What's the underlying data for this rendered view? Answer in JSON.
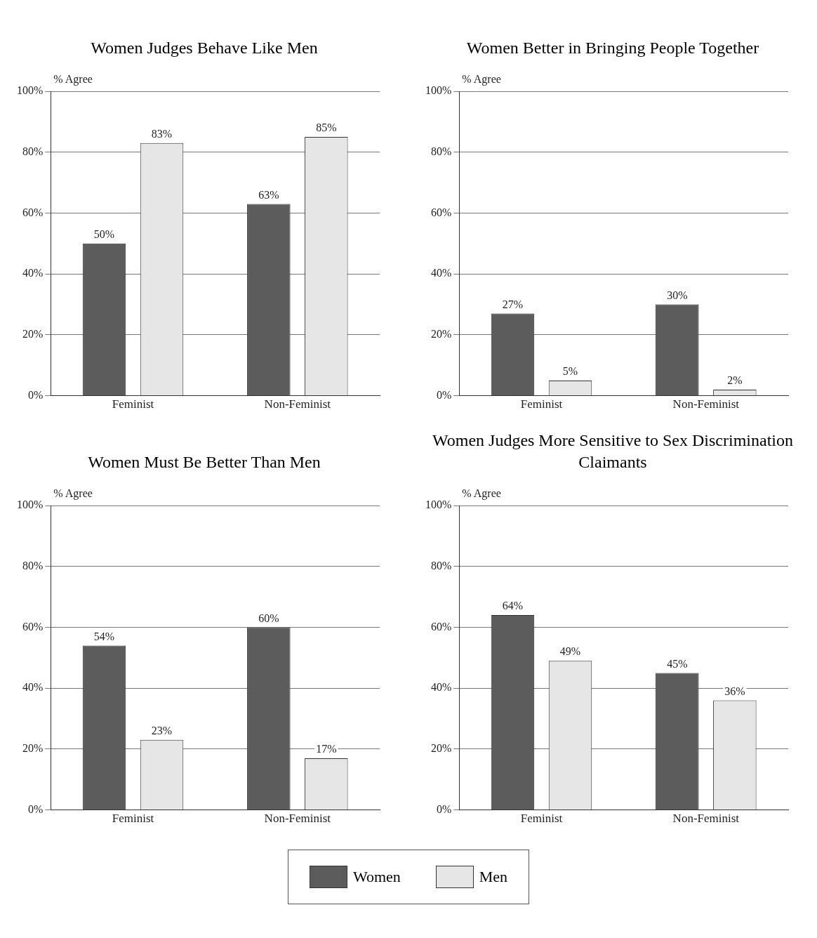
{
  "chart_data": [
    {
      "type": "bar",
      "title": "Women Judges Behave Like Men",
      "ylabel": "% Agree",
      "categories": [
        "Feminist",
        "Non-Feminist"
      ],
      "series": [
        {
          "name": "Women",
          "color": "#5c5c5c",
          "values": [
            50,
            63
          ],
          "value_labels": [
            "50%",
            "63%"
          ]
        },
        {
          "name": "Men",
          "color": "#e6e6e6",
          "values": [
            83,
            85
          ],
          "value_labels": [
            "83%",
            "85%"
          ]
        }
      ],
      "ylim": [
        0,
        100
      ],
      "yticks": [
        {
          "value": 0,
          "label": "0%"
        },
        {
          "value": 20,
          "label": "20%"
        },
        {
          "value": 40,
          "label": "40%"
        },
        {
          "value": 60,
          "label": "60%"
        },
        {
          "value": 80,
          "label": "80%"
        },
        {
          "value": 100,
          "label": "100%"
        }
      ],
      "grid": "y",
      "legend": "bottom"
    },
    {
      "type": "bar",
      "title": "Women Better in Bringing People Together",
      "ylabel": "% Agree",
      "categories": [
        "Feminist",
        "Non-Feminist"
      ],
      "series": [
        {
          "color": "#5c5c5c",
          "values": [
            27,
            30
          ],
          "value_labels": [
            "27%",
            "30%"
          ]
        },
        {
          "color": "#e6e6e6",
          "values": [
            5,
            2
          ],
          "value_labels": [
            "5%",
            "2%"
          ]
        }
      ],
      "ylim": [
        0,
        100
      ],
      "yticks": [
        {
          "value": 0,
          "label": "0%"
        },
        {
          "value": 20,
          "label": "20%"
        },
        {
          "value": 40,
          "label": "40%"
        },
        {
          "value": 60,
          "label": "60%"
        },
        {
          "value": 80,
          "label": "80%"
        },
        {
          "value": 100,
          "label": "100%"
        }
      ],
      "grid": "y"
    },
    {
      "type": "bar",
      "title": "Women Must Be Better Than Men",
      "ylabel": "% Agree",
      "categories": [
        "Feminist",
        "Non-Feminist"
      ],
      "series": [
        {
          "color": "#5c5c5c",
          "values": [
            54,
            60
          ],
          "value_labels": [
            "54%",
            "60%"
          ]
        },
        {
          "color": "#e6e6e6",
          "values": [
            23,
            17
          ],
          "value_labels": [
            "23%",
            "17%"
          ]
        }
      ],
      "ylim": [
        0,
        100
      ],
      "yticks": [
        {
          "value": 0,
          "label": "0%"
        },
        {
          "value": 20,
          "label": "20%"
        },
        {
          "value": 40,
          "label": "40%"
        },
        {
          "value": 60,
          "label": "60%"
        },
        {
          "value": 80,
          "label": "80%"
        },
        {
          "value": 100,
          "label": "100%"
        }
      ],
      "grid": "y"
    },
    {
      "type": "bar",
      "title": "Women Judges More Sensitive to Sex Discrimination Claimants",
      "ylabel": "% Agree",
      "categories": [
        "Feminist",
        "Non-Feminist"
      ],
      "series": [
        {
          "color": "#5c5c5c",
          "values": [
            64,
            45
          ],
          "value_labels": [
            "64%",
            "45%"
          ]
        },
        {
          "color": "#e6e6e6",
          "values": [
            49,
            36
          ],
          "value_labels": [
            "49%",
            "36%"
          ]
        }
      ],
      "ylim": [
        0,
        100
      ],
      "yticks": [
        {
          "value": 0,
          "label": "0%"
        },
        {
          "value": 20,
          "label": "20%"
        },
        {
          "value": 40,
          "label": "40%"
        },
        {
          "value": 60,
          "label": "60%"
        },
        {
          "value": 80,
          "label": "80%"
        },
        {
          "value": 100,
          "label": "100%"
        }
      ],
      "grid": "y"
    }
  ]
}
